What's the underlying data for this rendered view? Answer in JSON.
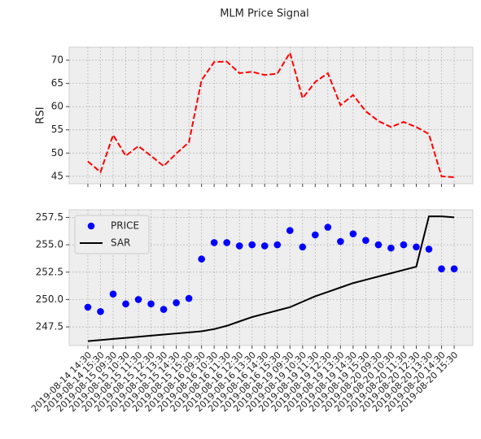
{
  "chart_data": [
    {
      "type": "line",
      "title": "MLM Price Signal",
      "ylabel": "RSI",
      "series": [
        {
          "name": "RSI",
          "color": "#ff0000",
          "dash": true,
          "values": [
            48.2,
            45.9,
            53.9,
            49.4,
            51.5,
            49.4,
            47.2,
            49.9,
            52.3,
            65.7,
            69.6,
            69.7,
            67.2,
            67.5,
            66.8,
            67.1,
            71.6,
            61.8,
            65.3,
            67.2,
            60.3,
            62.5,
            59.0,
            56.9,
            55.6,
            56.7,
            55.6,
            54.1,
            45.0,
            44.8
          ]
        }
      ],
      "ylim": [
        43.4,
        72.8
      ],
      "yticks": [
        45,
        50,
        55,
        60,
        65,
        70
      ],
      "grid": true
    },
    {
      "type": "line",
      "categories": [
        "2019-08-14 14:30",
        "2019-08-14 15:30",
        "2019-08-15 09:30",
        "2019-08-15 10:30",
        "2019-08-15 11:30",
        "2019-08-15 12:30",
        "2019-08-15 13:30",
        "2019-08-15 14:30",
        "2019-08-15 15:30",
        "2019-08-16 09:30",
        "2019-08-16 10:30",
        "2019-08-16 11:30",
        "2019-08-16 12:30",
        "2019-08-16 13:30",
        "2019-08-16 14:30",
        "2019-08-16 15:30",
        "2019-08-19 09:30",
        "2019-08-19 10:30",
        "2019-08-19 11:30",
        "2019-08-19 12:30",
        "2019-08-19 13:30",
        "2019-08-19 14:30",
        "2019-08-19 15:30",
        "2019-08-20 09:30",
        "2019-08-20 10:30",
        "2019-08-20 11:30",
        "2019-08-20 12:30",
        "2019-08-20 13:30",
        "2019-08-20 14:30",
        "2019-08-20 15:30"
      ],
      "series": [
        {
          "name": "PRICE",
          "color": "#0000ff",
          "marker": true,
          "values": [
            249.3,
            248.9,
            250.5,
            249.6,
            250.0,
            249.6,
            249.1,
            249.7,
            250.1,
            253.7,
            255.2,
            255.2,
            254.9,
            255.0,
            254.9,
            255.0,
            256.3,
            254.8,
            255.9,
            256.6,
            255.3,
            256.0,
            255.4,
            255.0,
            254.7,
            255.0,
            254.8,
            254.6,
            252.8,
            252.8
          ]
        },
        {
          "name": "SAR",
          "color": "#000000",
          "values": [
            246.2,
            246.3,
            246.4,
            246.5,
            246.6,
            246.7,
            246.8,
            246.9,
            247.0,
            247.1,
            247.3,
            247.6,
            248.0,
            248.4,
            248.7,
            249.0,
            249.3,
            249.8,
            250.3,
            250.7,
            251.1,
            251.5,
            251.8,
            252.1,
            252.4,
            252.7,
            253.0,
            257.6,
            257.6,
            257.5
          ]
        }
      ],
      "ylim": [
        245.8,
        258.2
      ],
      "yticks": [
        247.5,
        {
          "value": 250,
          "label": "250.0"
        },
        252.5,
        {
          "value": 255,
          "label": "255.0"
        },
        257.5
      ],
      "grid": true,
      "legend": "upper left"
    }
  ]
}
